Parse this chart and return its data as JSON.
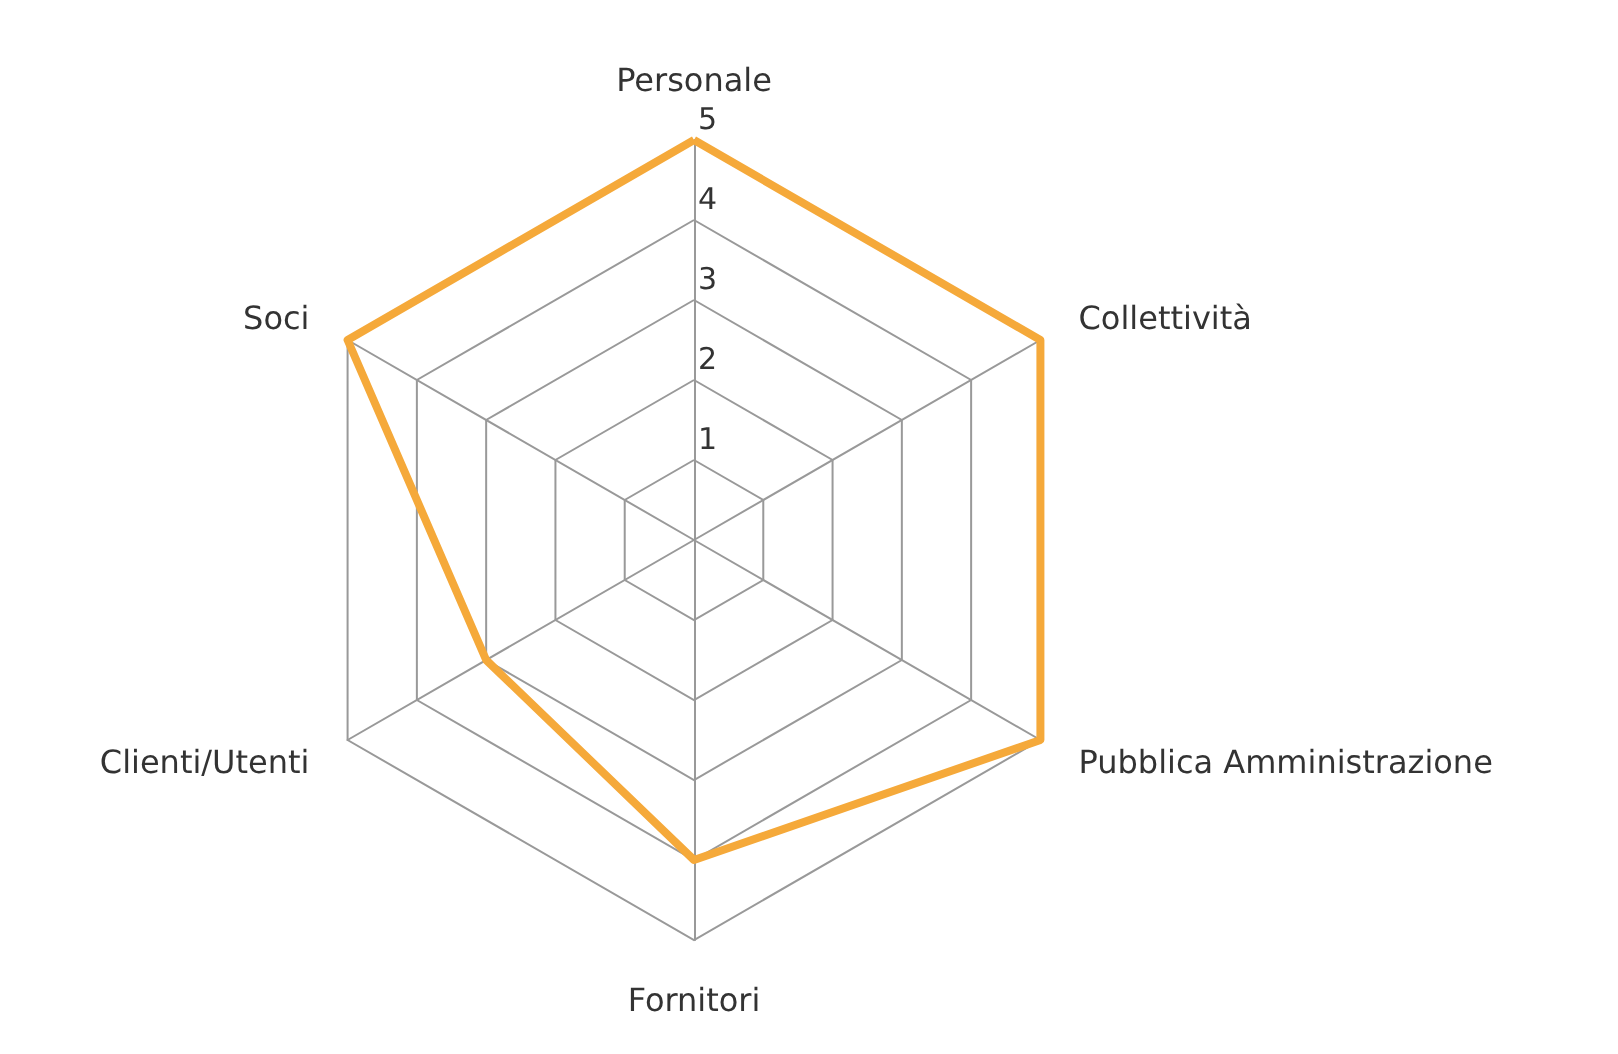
{
  "chart_data": {
    "type": "radar",
    "categories": [
      "Personale",
      "Collettività",
      "Pubblica Amministrazione",
      "Fornitori",
      "Clienti/Utenti",
      "Soci"
    ],
    "series": [
      {
        "color": "#f5a93a",
        "values": [
          5,
          5,
          5,
          4,
          3,
          5
        ]
      }
    ],
    "ylim": [
      0,
      5
    ],
    "yticks": [
      1,
      2,
      3,
      4,
      5
    ],
    "marker": "none",
    "line_style": "solid"
  }
}
